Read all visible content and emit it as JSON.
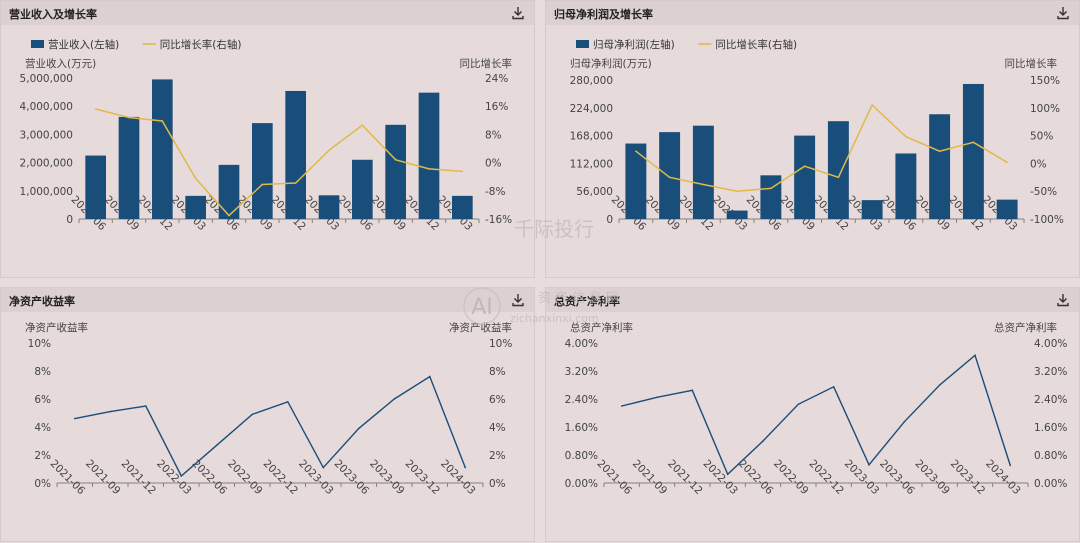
{
  "icons": {
    "download": "download-icon",
    "watermark": "watermark-logo"
  },
  "colors": {
    "bar": "#1a4e7a",
    "growth_line": "#e0b94a",
    "ratio_line": "#1a4e7a",
    "axis_text": "#444444"
  },
  "watermark": {
    "line1": "千际投行",
    "line2": "资产信息网",
    "line3": "zichanxinxi.com",
    "mark": "AI"
  },
  "panels": [
    {
      "title": "营业收入及增长率",
      "legend": [
        {
          "label": "营业收入(左轴)",
          "kind": "bar"
        },
        {
          "label": "同比增长率(右轴)",
          "kind": "line"
        }
      ],
      "chart_data": {
        "type": "bar",
        "categories": [
          "2021-06",
          "2021-09",
          "2021-12",
          "2022-03",
          "2022-06",
          "2022-09",
          "2022-12",
          "2023-03",
          "2023-06",
          "2023-09",
          "2023-12",
          "2024-03"
        ],
        "left_axis": {
          "label": "营业收入(万元)",
          "ticks": [
            "5,000,000",
            "4,000,000",
            "3,000,000",
            "2,000,000",
            "1,000,000",
            "0"
          ],
          "min": 0,
          "max": 5000000
        },
        "right_axis": {
          "label": "同比增长率",
          "ticks": [
            "24%",
            "16%",
            "8%",
            "0%",
            "-8%",
            "-16%"
          ],
          "min": -16,
          "max": 24
        },
        "series": [
          {
            "name": "营业收入(左轴)",
            "type": "bar",
            "axis": "left",
            "values": [
              2250000,
              3620000,
              4950000,
              820000,
              1920000,
              3400000,
              4540000,
              840000,
              2100000,
              3340000,
              4480000,
              820000
            ]
          },
          {
            "name": "同比增长率(右轴)",
            "type": "line",
            "axis": "right",
            "values": [
              15.2,
              12.8,
              11.8,
              -4.5,
              -15.0,
              -6.2,
              -5.8,
              3.5,
              10.6,
              0.8,
              -1.8,
              -2.5
            ]
          }
        ]
      }
    },
    {
      "title": "归母净利润及增长率",
      "legend": [
        {
          "label": "归母净利润(左轴)",
          "kind": "bar"
        },
        {
          "label": "同比增长率(右轴)",
          "kind": "line"
        }
      ],
      "chart_data": {
        "type": "bar",
        "categories": [
          "2021-06",
          "2021-09",
          "2021-12",
          "2022-03",
          "2022-06",
          "2022-09",
          "2022-12",
          "2023-03",
          "2023-06",
          "2023-09",
          "2023-12",
          "2024-03"
        ],
        "left_axis": {
          "label": "归母净利润(万元)",
          "ticks": [
            "280,000",
            "224,000",
            "168,000",
            "112,000",
            "56,000",
            "0"
          ],
          "min": 0,
          "max": 280000
        },
        "right_axis": {
          "label": "同比增长率",
          "ticks": [
            "150%",
            "100%",
            "50%",
            "0%",
            "-50%",
            "-100%"
          ],
          "min": -100,
          "max": 150
        },
        "series": [
          {
            "name": "归母净利润(左轴)",
            "type": "bar",
            "axis": "left",
            "values": [
              152000,
              175000,
              188000,
              17000,
              88000,
              168000,
              197000,
              38000,
              132000,
              211000,
              272000,
              39000
            ]
          },
          {
            "name": "同比增长率(右轴)",
            "type": "line",
            "axis": "right",
            "values": [
              22,
              -25,
              -38,
              -50,
              -45,
              -5,
              -25,
              105,
              48,
              22,
              38,
              2
            ]
          }
        ]
      }
    },
    {
      "title": "净资产收益率",
      "chart_data": {
        "type": "line",
        "categories": [
          "2021-06",
          "2021-09",
          "2021-12",
          "2022-03",
          "2022-06",
          "2022-09",
          "2022-12",
          "2023-03",
          "2023-06",
          "2023-09",
          "2023-12",
          "2024-03"
        ],
        "left_axis": {
          "label": "净资产收益率",
          "ticks": [
            "10%",
            "8%",
            "6%",
            "4%",
            "2%",
            "0%"
          ],
          "min": 0,
          "max": 10
        },
        "right_axis": {
          "label": "净资产收益率",
          "ticks": [
            "10%",
            "8%",
            "6%",
            "4%",
            "2%",
            "0%"
          ],
          "min": 0,
          "max": 10
        },
        "series": [
          {
            "type": "line",
            "axis": "left",
            "values": [
              4.6,
              5.1,
              5.5,
              0.5,
              2.7,
              4.9,
              5.8,
              1.1,
              3.9,
              6.0,
              7.6,
              1.1
            ]
          }
        ]
      }
    },
    {
      "title": "总资产净利率",
      "chart_data": {
        "type": "line",
        "categories": [
          "2021-06",
          "2021-09",
          "2021-12",
          "2022-03",
          "2022-06",
          "2022-09",
          "2022-12",
          "2023-03",
          "2023-06",
          "2023-09",
          "2023-12",
          "2024-03"
        ],
        "left_axis": {
          "label": "总资产净利率",
          "ticks": [
            "4.00%",
            "3.20%",
            "2.40%",
            "1.60%",
            "0.80%",
            "0.00%"
          ],
          "min": 0,
          "max": 4
        },
        "right_axis": {
          "label": "总资产净利率",
          "ticks": [
            "4.00%",
            "3.20%",
            "2.40%",
            "1.60%",
            "0.80%",
            "0.00%"
          ],
          "min": 0,
          "max": 4
        },
        "series": [
          {
            "type": "line",
            "axis": "left",
            "values": [
              2.2,
              2.45,
              2.65,
              0.25,
              1.2,
              2.25,
              2.75,
              0.52,
              1.75,
              2.8,
              3.65,
              0.5
            ]
          }
        ]
      }
    }
  ]
}
